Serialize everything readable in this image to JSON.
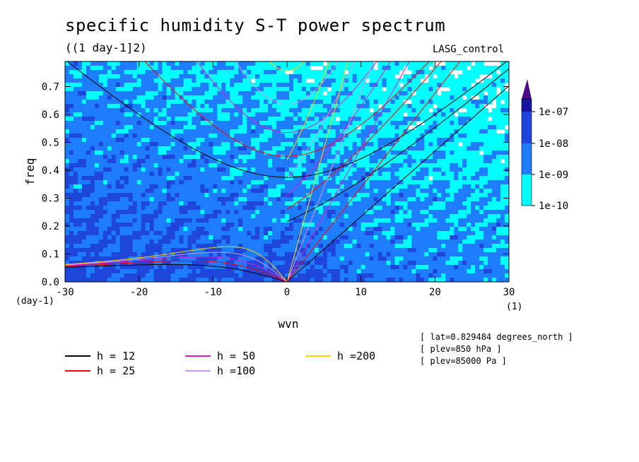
{
  "chart_data": {
    "type": "heatmap",
    "title": "specific humidity S-T power spectrum",
    "subtitle": "((1 day-1]2)",
    "run_label": "LASG_control",
    "xlabel": "wvn",
    "ylabel": "freq",
    "x_unit": "(1)",
    "y_unit": "(day-1)",
    "xlim": [
      -30,
      30
    ],
    "ylim": [
      0,
      0.79
    ],
    "x_ticks": [
      "-30",
      "-20",
      "-10",
      "0",
      "10",
      "20",
      "30"
    ],
    "y_ticks": [
      "0.0",
      "0.1",
      "0.2",
      "0.3",
      "0.4",
      "0.5",
      "0.6",
      "0.7"
    ],
    "colorbar": {
      "levels": [
        "1e-10",
        "1e-09",
        "1e-08",
        "1e-07"
      ],
      "colors": [
        "#00ffff",
        "#1e7cff",
        "#1e46dc",
        "#1414a0",
        "#4b0c8c"
      ]
    },
    "dispersion_curves": [
      {
        "name": "h = 12",
        "h": 12,
        "color": "#000000"
      },
      {
        "name": "h = 25",
        "h": 25,
        "color": "#ff0000"
      },
      {
        "name": "h = 50",
        "h": 50,
        "color": "#e619c8"
      },
      {
        "name": "h =100",
        "h": 100,
        "color": "#d296e6"
      },
      {
        "name": "h =200",
        "h": 200,
        "color": "#ffd200"
      }
    ],
    "metadata_lines": [
      "[ lat=0.829484 degrees_north ]",
      "[ plev=850 hPa ]",
      "[ plev=85000 Pa ]"
    ]
  }
}
